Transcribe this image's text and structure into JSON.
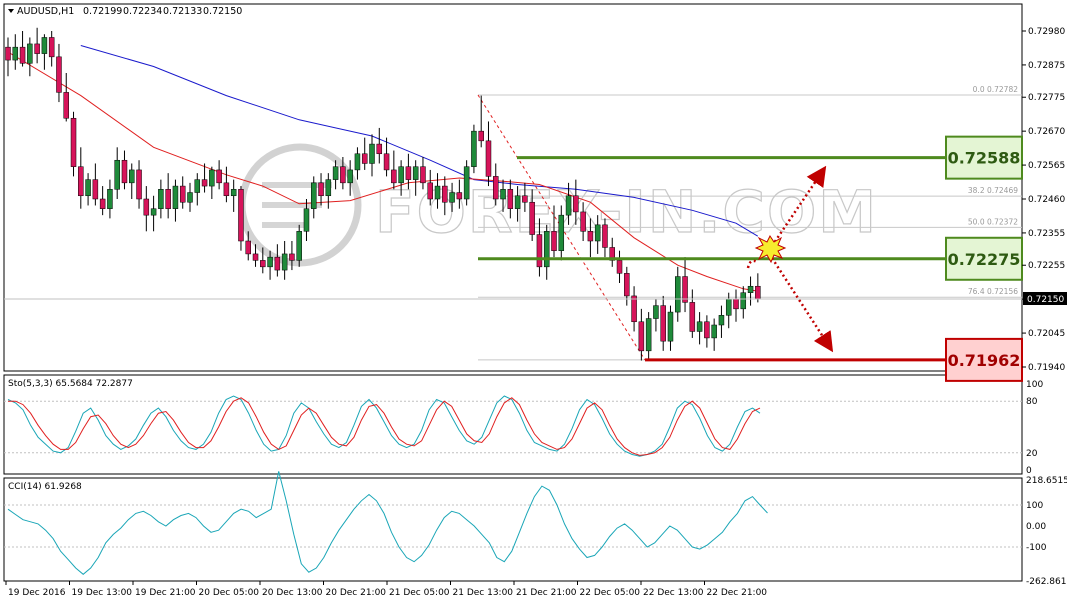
{
  "header": {
    "symbol": "AUDUSD,H1",
    "open": "0.72199",
    "high": "0.72234",
    "low": "0.72133",
    "close": "0.72150"
  },
  "current_price_label": "0.72150",
  "price_axis_labels": [
    "0.72980",
    "0.72875",
    "0.72775",
    "0.72670",
    "0.72565",
    "0.72460",
    "0.72355",
    "0.72255",
    "0.72150",
    "0.72045",
    "0.71940"
  ],
  "time_axis_labels": [
    "19 Dec 2016",
    "19 Dec 13:00",
    "19 Dec 21:00",
    "20 Dec 05:00",
    "20 Dec 13:00",
    "20 Dec 21:00",
    "21 Dec 05:00",
    "21 Dec 13:00",
    "21 Dec 21:00",
    "22 Dec 05:00",
    "22 Dec 13:00",
    "22 Dec 21:00"
  ],
  "fibonacci_labels": [
    "0.0  0.72782",
    "38.2  0.72469",
    "50.0  0.72372",
    "76.4  0.72156"
  ],
  "levels": {
    "resistance": "0.72588",
    "pivot": "0.72275",
    "support": "0.71962"
  },
  "watermark": "FOREX-IN.COM",
  "stoch": {
    "label": "Sto(5,3,3) 65.5684 72.2877",
    "axis": [
      "100",
      "80",
      "20",
      "0"
    ]
  },
  "cci": {
    "label": "CCI(14) 61.9268",
    "axis": [
      "218.6515",
      "100",
      "0.00",
      "-100",
      "-262.8618"
    ]
  },
  "colors": {
    "bull": "#1f8a3a",
    "bear": "#d6145a",
    "ma_fast": "#e02020",
    "ma_slow": "#1a1acc",
    "green_level": "#4e8a1e",
    "red_level": "#c00000",
    "stoch_main": "#1aa6b7",
    "stoch_signal": "#e02020",
    "cci_line": "#1aa6b7"
  },
  "chart_data": {
    "type": "candlestick",
    "symbol": "AUDUSD",
    "timeframe": "H1",
    "ylim": [
      0.7191,
      0.7303
    ],
    "candles": [
      [
        0.7293,
        0.7296,
        0.7284,
        0.7289
      ],
      [
        0.7289,
        0.7297,
        0.7286,
        0.7293
      ],
      [
        0.7293,
        0.7298,
        0.7287,
        0.7288
      ],
      [
        0.7288,
        0.7296,
        0.7284,
        0.7294
      ],
      [
        0.7294,
        0.7299,
        0.7288,
        0.7291
      ],
      [
        0.7291,
        0.7297,
        0.7286,
        0.7296
      ],
      [
        0.7296,
        0.7298,
        0.7287,
        0.729
      ],
      [
        0.729,
        0.7294,
        0.7276,
        0.7279
      ],
      [
        0.7279,
        0.7285,
        0.727,
        0.7271
      ],
      [
        0.7271,
        0.7273,
        0.7253,
        0.7256
      ],
      [
        0.7256,
        0.7262,
        0.7243,
        0.7247
      ],
      [
        0.7247,
        0.7254,
        0.7244,
        0.7252
      ],
      [
        0.7252,
        0.7257,
        0.7244,
        0.7246
      ],
      [
        0.7246,
        0.725,
        0.7241,
        0.7243
      ],
      [
        0.7243,
        0.7252,
        0.724,
        0.7249
      ],
      [
        0.7249,
        0.7262,
        0.7246,
        0.7258
      ],
      [
        0.7258,
        0.7261,
        0.7249,
        0.7251
      ],
      [
        0.7251,
        0.7257,
        0.7246,
        0.7255
      ],
      [
        0.7255,
        0.7258,
        0.7243,
        0.7246
      ],
      [
        0.7246,
        0.725,
        0.7236,
        0.7241
      ],
      [
        0.7241,
        0.7247,
        0.7236,
        0.7243
      ],
      [
        0.7243,
        0.7252,
        0.724,
        0.7249
      ],
      [
        0.7249,
        0.7254,
        0.724,
        0.7243
      ],
      [
        0.7243,
        0.7252,
        0.7239,
        0.725
      ],
      [
        0.725,
        0.7253,
        0.7243,
        0.7245
      ],
      [
        0.7245,
        0.7251,
        0.7242,
        0.7248
      ],
      [
        0.7248,
        0.7254,
        0.7244,
        0.7252
      ],
      [
        0.7252,
        0.7257,
        0.7248,
        0.725
      ],
      [
        0.725,
        0.7256,
        0.7246,
        0.7255
      ],
      [
        0.7255,
        0.7258,
        0.7249,
        0.7251
      ],
      [
        0.7251,
        0.7256,
        0.7245,
        0.7247
      ],
      [
        0.7247,
        0.7252,
        0.7242,
        0.7249
      ],
      [
        0.7249,
        0.725,
        0.723,
        0.7233
      ],
      [
        0.7233,
        0.7236,
        0.7227,
        0.7229
      ],
      [
        0.7229,
        0.7232,
        0.7225,
        0.7227
      ],
      [
        0.7227,
        0.7231,
        0.7223,
        0.7225
      ],
      [
        0.7225,
        0.723,
        0.7221,
        0.7228
      ],
      [
        0.7228,
        0.7232,
        0.7222,
        0.7224
      ],
      [
        0.7224,
        0.7233,
        0.7221,
        0.7229
      ],
      [
        0.7229,
        0.7233,
        0.7224,
        0.7227
      ],
      [
        0.7227,
        0.7238,
        0.7225,
        0.7236
      ],
      [
        0.7236,
        0.7246,
        0.7233,
        0.7243
      ],
      [
        0.7243,
        0.7253,
        0.724,
        0.7251
      ],
      [
        0.7251,
        0.7254,
        0.7244,
        0.7247
      ],
      [
        0.7247,
        0.7254,
        0.7243,
        0.7252
      ],
      [
        0.7252,
        0.7258,
        0.7249,
        0.7256
      ],
      [
        0.7256,
        0.7259,
        0.7249,
        0.7251
      ],
      [
        0.7251,
        0.7258,
        0.7247,
        0.7255
      ],
      [
        0.7255,
        0.7262,
        0.7252,
        0.726
      ],
      [
        0.726,
        0.7265,
        0.7255,
        0.7257
      ],
      [
        0.7257,
        0.7266,
        0.7253,
        0.7263
      ],
      [
        0.7263,
        0.7268,
        0.7257,
        0.726
      ],
      [
        0.726,
        0.7265,
        0.7253,
        0.7255
      ],
      [
        0.7255,
        0.7261,
        0.7249,
        0.7251
      ],
      [
        0.7251,
        0.7258,
        0.7247,
        0.7256
      ],
      [
        0.7256,
        0.726,
        0.7249,
        0.7252
      ],
      [
        0.7252,
        0.7258,
        0.7247,
        0.7256
      ],
      [
        0.7256,
        0.7259,
        0.7249,
        0.7251
      ],
      [
        0.7251,
        0.7255,
        0.7244,
        0.7246
      ],
      [
        0.7246,
        0.7254,
        0.7243,
        0.725
      ],
      [
        0.725,
        0.7253,
        0.7241,
        0.7245
      ],
      [
        0.7245,
        0.7251,
        0.7242,
        0.7248
      ],
      [
        0.7248,
        0.7252,
        0.7243,
        0.7246
      ],
      [
        0.7246,
        0.7258,
        0.7244,
        0.7256
      ],
      [
        0.7256,
        0.7269,
        0.7254,
        0.7267
      ],
      [
        0.7267,
        0.7278,
        0.7262,
        0.7264
      ],
      [
        0.7264,
        0.727,
        0.725,
        0.7253
      ],
      [
        0.7253,
        0.7257,
        0.7244,
        0.7246
      ],
      [
        0.7246,
        0.7252,
        0.7242,
        0.7249
      ],
      [
        0.7249,
        0.7252,
        0.724,
        0.7243
      ],
      [
        0.7243,
        0.725,
        0.7239,
        0.7247
      ],
      [
        0.7247,
        0.7251,
        0.7242,
        0.7245
      ],
      [
        0.7245,
        0.7249,
        0.7233,
        0.7235
      ],
      [
        0.7235,
        0.724,
        0.7222,
        0.7225
      ],
      [
        0.7225,
        0.7238,
        0.7221,
        0.7236
      ],
      [
        0.7236,
        0.7244,
        0.7228,
        0.723
      ],
      [
        0.723,
        0.7244,
        0.7227,
        0.7241
      ],
      [
        0.7241,
        0.7251,
        0.7238,
        0.7247
      ],
      [
        0.7247,
        0.7252,
        0.7238,
        0.7242
      ],
      [
        0.7242,
        0.7245,
        0.7233,
        0.7236
      ],
      [
        0.7236,
        0.724,
        0.7228,
        0.7233
      ],
      [
        0.7233,
        0.7241,
        0.7229,
        0.7238
      ],
      [
        0.7238,
        0.724,
        0.7228,
        0.7231
      ],
      [
        0.7231,
        0.7234,
        0.7225,
        0.7227
      ],
      [
        0.7227,
        0.723,
        0.722,
        0.7223
      ],
      [
        0.7223,
        0.7225,
        0.7213,
        0.7216
      ],
      [
        0.7216,
        0.7219,
        0.7205,
        0.7208
      ],
      [
        0.7208,
        0.7212,
        0.7196,
        0.7199
      ],
      [
        0.7199,
        0.7211,
        0.7196,
        0.7209
      ],
      [
        0.7209,
        0.7215,
        0.7205,
        0.7213
      ],
      [
        0.7213,
        0.7216,
        0.7199,
        0.7202
      ],
      [
        0.7202,
        0.7213,
        0.7199,
        0.7211
      ],
      [
        0.7211,
        0.7225,
        0.7208,
        0.7222
      ],
      [
        0.7222,
        0.7228,
        0.7211,
        0.7214
      ],
      [
        0.7214,
        0.7218,
        0.7203,
        0.7205
      ],
      [
        0.7205,
        0.7211,
        0.7201,
        0.7208
      ],
      [
        0.7208,
        0.721,
        0.72,
        0.7203
      ],
      [
        0.7203,
        0.7209,
        0.7199,
        0.7207
      ],
      [
        0.7207,
        0.7213,
        0.7203,
        0.721
      ],
      [
        0.721,
        0.7217,
        0.7206,
        0.7215
      ],
      [
        0.7215,
        0.7218,
        0.7208,
        0.7212
      ],
      [
        0.7212,
        0.7219,
        0.7209,
        0.7217
      ],
      [
        0.7217,
        0.7222,
        0.7213,
        0.7219
      ],
      [
        0.7219,
        0.7223,
        0.7214,
        0.7215
      ]
    ],
    "ma_fast": [
      [
        0,
        0.72915
      ],
      [
        10,
        0.7278
      ],
      [
        20,
        0.7262
      ],
      [
        30,
        0.72535
      ],
      [
        35,
        0.725
      ],
      [
        40,
        0.72445
      ],
      [
        47,
        0.72455
      ],
      [
        55,
        0.7251
      ],
      [
        62,
        0.72525
      ],
      [
        68,
        0.72515
      ],
      [
        73,
        0.72505
      ],
      [
        80,
        0.7245
      ],
      [
        86,
        0.7234
      ],
      [
        92,
        0.72255
      ],
      [
        96,
        0.7222
      ],
      [
        101,
        0.72182
      ],
      [
        103,
        0.72175
      ]
    ],
    "ma_slow": [
      [
        10,
        0.72935
      ],
      [
        20,
        0.7287
      ],
      [
        30,
        0.7278
      ],
      [
        40,
        0.72705
      ],
      [
        50,
        0.72655
      ],
      [
        58,
        0.7258
      ],
      [
        64,
        0.7252
      ],
      [
        70,
        0.72505
      ],
      [
        78,
        0.7249
      ],
      [
        86,
        0.72465
      ],
      [
        94,
        0.72425
      ],
      [
        100,
        0.72385
      ],
      [
        103,
        0.72345
      ]
    ],
    "stochastic": {
      "main": [
        82,
        78,
        70,
        52,
        38,
        30,
        22,
        20,
        26,
        45,
        66,
        72,
        58,
        40,
        30,
        24,
        28,
        36,
        52,
        66,
        72,
        62,
        46,
        34,
        26,
        24,
        30,
        44,
        66,
        82,
        86,
        82,
        66,
        46,
        30,
        22,
        24,
        40,
        66,
        78,
        72,
        56,
        42,
        30,
        26,
        32,
        52,
        74,
        82,
        72,
        56,
        40,
        30,
        26,
        30,
        46,
        70,
        82,
        78,
        62,
        46,
        34,
        30,
        38,
        58,
        78,
        86,
        82,
        66,
        46,
        32,
        28,
        24,
        22,
        30,
        48,
        70,
        82,
        76,
        60,
        42,
        30,
        22,
        18,
        16,
        18,
        22,
        30,
        50,
        72,
        80,
        76,
        60,
        40,
        26,
        22,
        30,
        50,
        68,
        72,
        66
      ],
      "signal": [
        80,
        80,
        76,
        66,
        52,
        40,
        30,
        24,
        24,
        32,
        48,
        62,
        64,
        54,
        40,
        30,
        26,
        30,
        40,
        54,
        66,
        68,
        58,
        44,
        32,
        26,
        26,
        34,
        50,
        68,
        80,
        84,
        78,
        62,
        44,
        30,
        24,
        28,
        46,
        64,
        72,
        66,
        52,
        38,
        30,
        28,
        38,
        58,
        74,
        76,
        66,
        50,
        36,
        30,
        28,
        34,
        52,
        70,
        80,
        74,
        58,
        42,
        34,
        32,
        42,
        62,
        78,
        84,
        76,
        58,
        42,
        32,
        28,
        24,
        26,
        36,
        54,
        72,
        78,
        70,
        52,
        36,
        26,
        20,
        17,
        18,
        20,
        26,
        38,
        58,
        74,
        80,
        72,
        54,
        36,
        26,
        24,
        36,
        54,
        68,
        72
      ]
    },
    "cci": [
      80,
      55,
      30,
      20,
      10,
      -20,
      -60,
      -120,
      -160,
      -200,
      -230,
      -200,
      -150,
      -80,
      -40,
      -10,
      30,
      60,
      70,
      50,
      20,
      0,
      30,
      50,
      60,
      40,
      0,
      -30,
      -20,
      20,
      60,
      80,
      70,
      40,
      60,
      80,
      260,
      120,
      -40,
      -180,
      -220,
      -200,
      -150,
      -80,
      -20,
      30,
      80,
      120,
      150,
      120,
      60,
      -30,
      -100,
      -150,
      -170,
      -140,
      -90,
      -20,
      40,
      70,
      60,
      30,
      0,
      -40,
      -80,
      -150,
      -170,
      -120,
      -30,
      60,
      140,
      190,
      170,
      100,
      10,
      -60,
      -110,
      -150,
      -140,
      -100,
      -50,
      -10,
      10,
      -20,
      -60,
      -100,
      -80,
      -40,
      0,
      -20,
      -60,
      -100,
      -110,
      -90,
      -60,
      -30,
      20,
      60,
      120,
      140,
      100,
      62
    ]
  }
}
